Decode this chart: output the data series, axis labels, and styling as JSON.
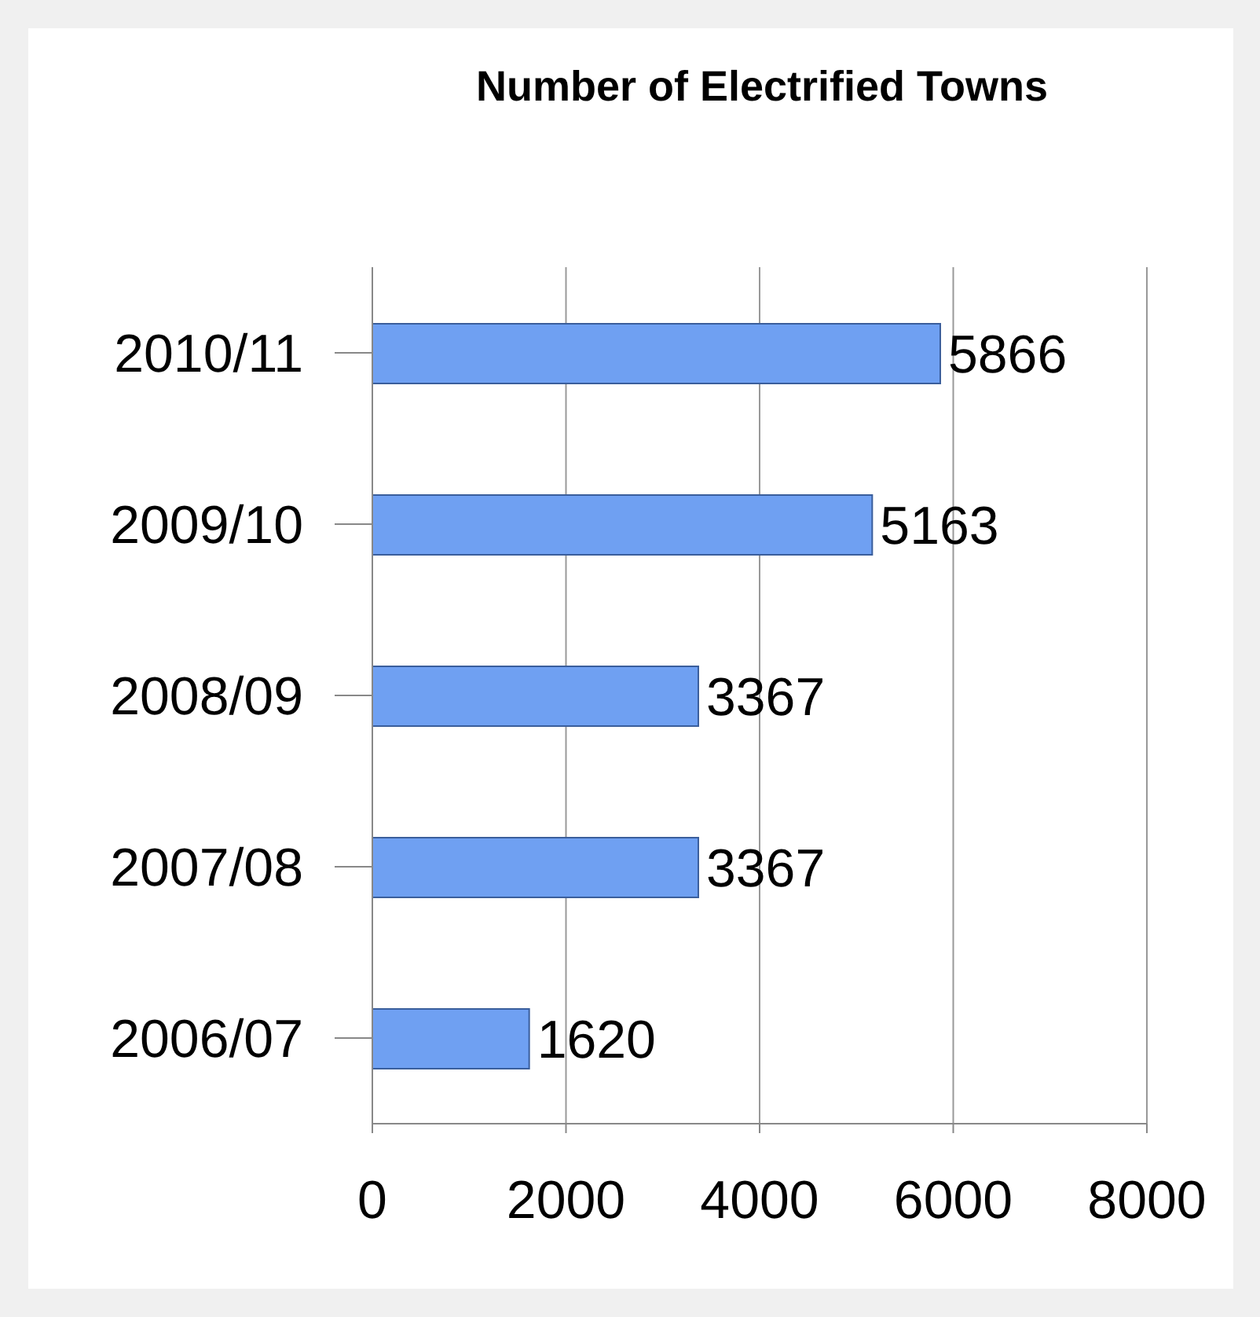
{
  "chart_data": {
    "type": "bar",
    "orientation": "horizontal",
    "title": "Number of Electrified Towns",
    "categories": [
      "2010/11",
      "2009/10",
      "2008/09",
      "2007/08",
      "2006/07"
    ],
    "values": [
      5866,
      5163,
      3367,
      3367,
      1620
    ],
    "color": "#6fa0f2",
    "xlim": [
      0,
      8000
    ],
    "xticks": [
      0,
      2000,
      4000,
      6000,
      8000
    ],
    "grid": "x",
    "data_labels": true
  }
}
